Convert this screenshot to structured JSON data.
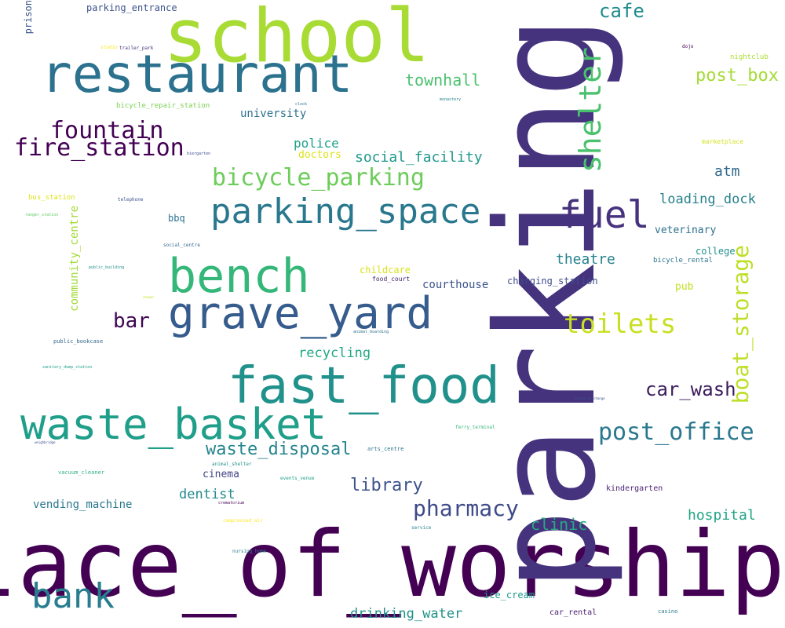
{
  "words": [
    {
      "id": "place_of_worship",
      "text": "place_of_worship",
      "color": "#440154"
    },
    {
      "id": "parking",
      "text": "parking",
      "color": "#46337e"
    },
    {
      "id": "school",
      "text": "school",
      "color": "#a8db34"
    },
    {
      "id": "restaurant",
      "text": "restaurant",
      "color": "#2c728e"
    },
    {
      "id": "fast_food",
      "text": "fast_food",
      "color": "#21918c"
    },
    {
      "id": "waste_basket",
      "text": "waste_basket",
      "color": "#1f9e89"
    },
    {
      "id": "grave_yard",
      "text": "grave_yard",
      "color": "#365c8d"
    },
    {
      "id": "bench",
      "text": "bench",
      "color": "#35b779"
    },
    {
      "id": "parking_space",
      "text": "parking_space",
      "color": "#2a788e"
    },
    {
      "id": "fuel",
      "text": "fuel",
      "color": "#46327e"
    },
    {
      "id": "shelter",
      "text": "shelter",
      "color": "#4ac16d"
    },
    {
      "id": "bank",
      "text": "bank",
      "color": "#287d8e"
    },
    {
      "id": "bicycle_parking",
      "text": "bicycle_parking",
      "color": "#6ccd5a"
    },
    {
      "id": "fire_station",
      "text": "fire_station",
      "color": "#440154"
    },
    {
      "id": "fountain",
      "text": "fountain",
      "color": "#440154"
    },
    {
      "id": "toilets",
      "text": "toilets",
      "color": "#c8e020"
    },
    {
      "id": "post_office",
      "text": "post_office",
      "color": "#2a788e"
    },
    {
      "id": "boat_storage",
      "text": "boat_storage",
      "color": "#bddf26"
    },
    {
      "id": "car_wash",
      "text": "car_wash",
      "color": "#3b1c5a"
    },
    {
      "id": "pharmacy",
      "text": "pharmacy",
      "color": "#3e4a89"
    },
    {
      "id": "waste_disposal",
      "text": "waste_disposal",
      "color": "#25858e"
    },
    {
      "id": "bar",
      "text": "bar",
      "color": "#3e0751"
    },
    {
      "id": "cafe",
      "text": "cafe",
      "color": "#228c8d"
    },
    {
      "id": "post_box",
      "text": "post_box",
      "color": "#a5db36"
    },
    {
      "id": "townhall",
      "text": "townhall",
      "color": "#4ac16d"
    },
    {
      "id": "library",
      "text": "library",
      "color": "#3b528b"
    },
    {
      "id": "social_facility",
      "text": "social_facility",
      "color": "#1f988b"
    },
    {
      "id": "hospital",
      "text": "hospital",
      "color": "#20a486"
    },
    {
      "id": "clinic",
      "text": "clinic",
      "color": "#25ab82"
    },
    {
      "id": "dentist",
      "text": "dentist",
      "color": "#23898e"
    },
    {
      "id": "theatre",
      "text": "theatre",
      "color": "#26828e"
    },
    {
      "id": "drinking_water",
      "text": "drinking_water",
      "color": "#21918c"
    },
    {
      "id": "loading_dock",
      "text": "loading_dock",
      "color": "#27808e"
    },
    {
      "id": "atm",
      "text": "atm",
      "color": "#31688e"
    },
    {
      "id": "recycling",
      "text": "recycling",
      "color": "#22a884"
    },
    {
      "id": "police",
      "text": "police",
      "color": "#1fa187"
    },
    {
      "id": "vending_machine",
      "text": "vending_machine",
      "color": "#2a788e"
    },
    {
      "id": "community_centre",
      "text": "community_centre",
      "color": "#a2da37"
    },
    {
      "id": "university",
      "text": "university",
      "color": "#2c718e"
    },
    {
      "id": "doctors",
      "text": "doctors",
      "color": "#dde318"
    },
    {
      "id": "courthouse",
      "text": "courthouse",
      "color": "#3b528b"
    },
    {
      "id": "cinema",
      "text": "cinema",
      "color": "#414487"
    },
    {
      "id": "veterinary",
      "text": "veterinary",
      "color": "#2d708e"
    },
    {
      "id": "parking_entrance",
      "text": "parking_entrance",
      "color": "#3b528b"
    },
    {
      "id": "prison",
      "text": "prison",
      "color": "#39568c"
    },
    {
      "id": "charging_station",
      "text": "charging_station",
      "color": "#3e4c8a"
    },
    {
      "id": "college",
      "text": "college",
      "color": "#21908d"
    },
    {
      "id": "pub",
      "text": "pub",
      "color": "#c2df23"
    },
    {
      "id": "ice_cream",
      "text": "ice_cream",
      "color": "#1f998a"
    },
    {
      "id": "childcare",
      "text": "childcare",
      "color": "#dae319"
    },
    {
      "id": "bbq",
      "text": "bbq",
      "color": "#2c728e"
    },
    {
      "id": "nightclub",
      "text": "nightclub",
      "color": "#addc30"
    },
    {
      "id": "car_rental",
      "text": "car_rental",
      "color": "#481c6e"
    },
    {
      "id": "kindergarten",
      "text": "kindergarten",
      "color": "#482374"
    },
    {
      "id": "bicycle_repair_station",
      "text": "bicycle_repair_station",
      "color": "#7ad151"
    },
    {
      "id": "bicycle_rental",
      "text": "bicycle_rental",
      "color": "#2c738e"
    },
    {
      "id": "food_court",
      "text": "food_court",
      "color": "#3f1f66"
    },
    {
      "id": "marketplace",
      "text": "marketplace",
      "color": "#d2e21b"
    },
    {
      "id": "bus_station",
      "text": "bus_station",
      "color": "#dde318"
    },
    {
      "id": "casino",
      "text": "casino",
      "color": "#2a788e"
    },
    {
      "id": "public_bookcase",
      "text": "public_bookcase",
      "color": "#31688e"
    },
    {
      "id": "vacuum_cleaner",
      "text": "vacuum_cleaner",
      "color": "#2db27d"
    },
    {
      "id": "arts_centre",
      "text": "arts_centre",
      "color": "#2c728e"
    },
    {
      "id": "animal_shelter",
      "text": "animal_shelter",
      "color": "#21918c"
    },
    {
      "id": "telephone",
      "text": "telephone",
      "color": "#3b528b"
    },
    {
      "id": "social_centre",
      "text": "social_centre",
      "color": "#31688e"
    },
    {
      "id": "service",
      "text": "service",
      "color": "#25858e"
    },
    {
      "id": "nursing_home",
      "text": "nursing_home",
      "color": "#287d8e"
    },
    {
      "id": "trailer_park",
      "text": "trailer_park",
      "color": "#46337e"
    },
    {
      "id": "studio",
      "text": "studio",
      "color": "#fde725"
    },
    {
      "id": "ranger_station",
      "text": "ranger_station",
      "color": "#5ec962"
    },
    {
      "id": "compressed_air",
      "text": "compressed_air",
      "color": "#fde725"
    },
    {
      "id": "ferry_terminal",
      "text": "ferry_terminal",
      "color": "#35b779"
    },
    {
      "id": "events_venue",
      "text": "events_venue",
      "color": "#1fa187"
    },
    {
      "id": "sanitary_dump_station",
      "text": "sanitary_dump_station",
      "color": "#1f9e89"
    },
    {
      "id": "dojo",
      "text": "dojo",
      "color": "#440154"
    },
    {
      "id": "clock",
      "text": "clock",
      "color": "#2c728e"
    },
    {
      "id": "monastery",
      "text": "monastery",
      "color": "#26828e"
    },
    {
      "id": "biergarten",
      "text": "biergarten",
      "color": "#3b528b"
    },
    {
      "id": "public_building",
      "text": "public_building",
      "color": "#21918c"
    },
    {
      "id": "shower",
      "text": "shower",
      "color": "#c8e020"
    },
    {
      "id": "crematorium",
      "text": "crematorium",
      "color": "#440154"
    },
    {
      "id": "animal_boarding",
      "text": "animal_boarding",
      "color": "#2c728e"
    },
    {
      "id": "weighbridge",
      "text": "weighbridge",
      "color": "#3b528b"
    },
    {
      "id": "bureau_de_change",
      "text": "bureau_de_change",
      "color": "#3b528b"
    }
  ]
}
